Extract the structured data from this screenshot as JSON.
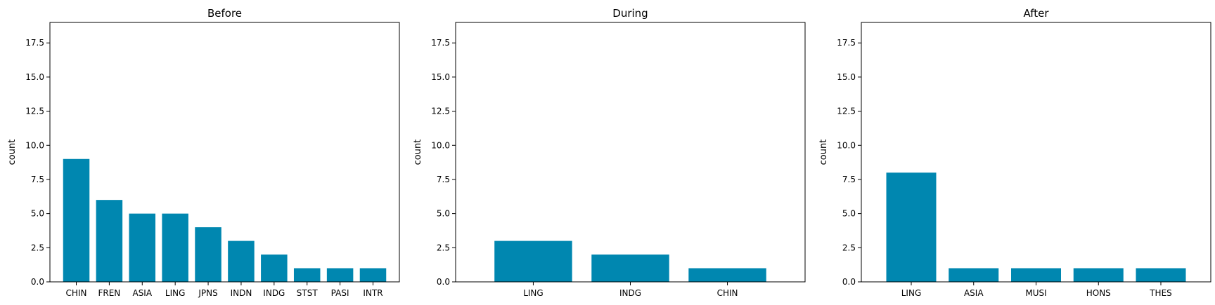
{
  "chart_data": [
    {
      "type": "bar",
      "title": "Before",
      "xlabel": "",
      "ylabel": "count",
      "categories": [
        "CHIN",
        "FREN",
        "ASIA",
        "LING",
        "JPNS",
        "INDN",
        "INDG",
        "STST",
        "PASI",
        "INTR"
      ],
      "values": [
        9,
        6,
        5,
        5,
        4,
        3,
        2,
        1,
        1,
        1
      ],
      "ylim": [
        0,
        19
      ],
      "yticks": [
        "0.0",
        "2.5",
        "5.0",
        "7.5",
        "10.0",
        "12.5",
        "15.0",
        "17.5"
      ],
      "color": "#0087b0",
      "grid": false
    },
    {
      "type": "bar",
      "title": "During",
      "xlabel": "",
      "ylabel": "count",
      "categories": [
        "LING",
        "INDG",
        "CHIN"
      ],
      "values": [
        3,
        2,
        1
      ],
      "ylim": [
        0,
        19
      ],
      "yticks": [
        "0.0",
        "2.5",
        "5.0",
        "7.5",
        "10.0",
        "12.5",
        "15.0",
        "17.5"
      ],
      "color": "#0087b0",
      "grid": false
    },
    {
      "type": "bar",
      "title": "After",
      "xlabel": "",
      "ylabel": "count",
      "categories": [
        "LING",
        "ASIA",
        "MUSI",
        "HONS",
        "THES"
      ],
      "values": [
        8,
        1,
        1,
        1,
        1
      ],
      "ylim": [
        0,
        19
      ],
      "yticks": [
        "0.0",
        "2.5",
        "5.0",
        "7.5",
        "10.0",
        "12.5",
        "15.0",
        "17.5"
      ],
      "color": "#0087b0",
      "grid": false
    }
  ]
}
